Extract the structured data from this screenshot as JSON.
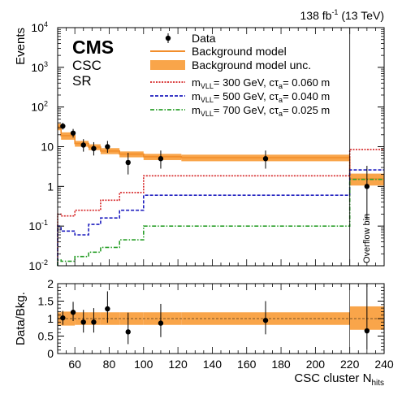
{
  "chart_data": [
    {
      "type": "histogram",
      "panel": "main",
      "ylabel": "Events",
      "yscale": "log",
      "ylim": [
        0.01,
        10000
      ],
      "xlim": [
        50,
        240
      ],
      "ytick_labels": [
        {
          "base": "10",
          "exp": "-2",
          "value": 0.01
        },
        {
          "base": "10",
          "exp": "-1",
          "value": 0.1
        },
        {
          "base": "1",
          "exp": "",
          "value": 1
        },
        {
          "base": "10",
          "exp": "",
          "value": 10
        },
        {
          "base": "10",
          "exp": "2",
          "value": 100
        },
        {
          "base": "10",
          "exp": "3",
          "value": 1000
        },
        {
          "base": "10",
          "exp": "4",
          "value": 10000
        }
      ],
      "lumi_text": {
        "main": "138 fb",
        "sup": "-1",
        "rest": " (13 TeV)"
      },
      "cms_label": "CMS",
      "sub_labels": [
        "CSC",
        "SR"
      ],
      "overflow_label": "Overflow bin",
      "bin_edges": [
        50,
        52,
        60,
        68,
        75,
        86,
        100,
        122,
        220,
        240
      ],
      "data": {
        "x": [
          53,
          59,
          65,
          71,
          79,
          91,
          110,
          171,
          230
        ],
        "y": [
          33,
          22,
          11,
          9,
          10,
          4,
          5,
          5,
          1
        ],
        "err_lo": [
          6,
          5,
          3.5,
          3,
          3,
          2,
          2.2,
          2.2,
          0.85
        ],
        "err_hi": [
          7,
          6,
          4.5,
          4,
          4,
          3,
          3,
          3,
          2.3
        ]
      },
      "background": {
        "values": [
          32,
          19,
          12,
          9.8,
          7.8,
          6.5,
          5.6,
          5.3,
          1.55
        ],
        "unc_lo": [
          26,
          15,
          10,
          8.2,
          6.5,
          5.4,
          4.6,
          4.3,
          1.05
        ],
        "unc_hi": [
          38,
          23,
          14,
          11.5,
          9.2,
          7.6,
          6.6,
          6.3,
          2.1
        ]
      },
      "signals": [
        {
          "name_parts": {
            "m": "m",
            "sub": "VLL",
            "mid": "= 300 GeV, cτ",
            "sub2": "a",
            "end": "= 0.060 m"
          },
          "color": "#d62728",
          "dash": "2,1.5",
          "values": [
            0.2,
            0.18,
            0.25,
            0.25,
            0.45,
            0.7,
            1.85,
            1.85,
            8.5
          ]
        },
        {
          "name_parts": {
            "m": "m",
            "sub": "VLL",
            "mid": "= 500 GeV, cτ",
            "sub2": "a",
            "end": "= 0.040 m"
          },
          "color": "#1f1fbf",
          "dash": "4,2",
          "values": [
            0.1,
            0.075,
            0.06,
            0.11,
            0.16,
            0.25,
            0.6,
            0.6,
            2.6
          ]
        },
        {
          "name_parts": {
            "m": "m",
            "sub": "VLL",
            "mid": "= 700 GeV, cτ",
            "sub2": "a",
            "end": "= 0.025 m"
          },
          "color": "#2ca02c",
          "dash": "5,2,1.5,2",
          "values": [
            0.014,
            0.013,
            0.017,
            0.022,
            0.029,
            0.045,
            0.1,
            0.1,
            1.5
          ]
        }
      ],
      "legend": {
        "placement": "top-right",
        "entries": [
          "Data",
          "Background model",
          "Background model unc."
        ]
      }
    },
    {
      "type": "ratio",
      "panel": "ratio",
      "ylabel": "Data/Bkg.",
      "xlabel": {
        "main": "CSC cluster N",
        "sub": "hits"
      },
      "ylim": [
        0,
        2
      ],
      "yticks": [
        0,
        0.5,
        1,
        1.5,
        2
      ],
      "ytick_labels": [
        "0",
        "0.5",
        "1",
        "1.5",
        "2"
      ],
      "xticks": [
        60,
        80,
        100,
        120,
        140,
        160,
        180,
        200,
        220,
        240
      ],
      "xtick_labels": [
        "60",
        "80",
        "100",
        "120",
        "140",
        "160",
        "180",
        "200",
        "220",
        "240"
      ],
      "data": {
        "x": [
          53,
          59,
          65,
          71,
          79,
          91,
          110,
          171,
          230
        ],
        "y": [
          1.02,
          1.18,
          0.9,
          0.9,
          1.28,
          0.62,
          0.87,
          0.95,
          0.65
        ],
        "err_lo": [
          0.2,
          0.25,
          0.3,
          0.3,
          0.4,
          0.35,
          0.4,
          0.4,
          0.55
        ],
        "err_hi": [
          0.2,
          0.3,
          0.35,
          0.4,
          0.5,
          0.55,
          0.55,
          0.55,
          1.35
        ]
      },
      "band": {
        "lo": [
          0.82,
          0.8,
          0.82,
          0.82,
          0.82,
          0.82,
          0.82,
          0.82,
          0.68
        ],
        "hi": [
          1.18,
          1.2,
          1.18,
          1.18,
          1.18,
          1.18,
          1.18,
          1.18,
          1.35
        ]
      }
    }
  ],
  "colors": {
    "background_line": "#f28e2b",
    "background_band": "#f9a54a",
    "data": "#000000"
  }
}
